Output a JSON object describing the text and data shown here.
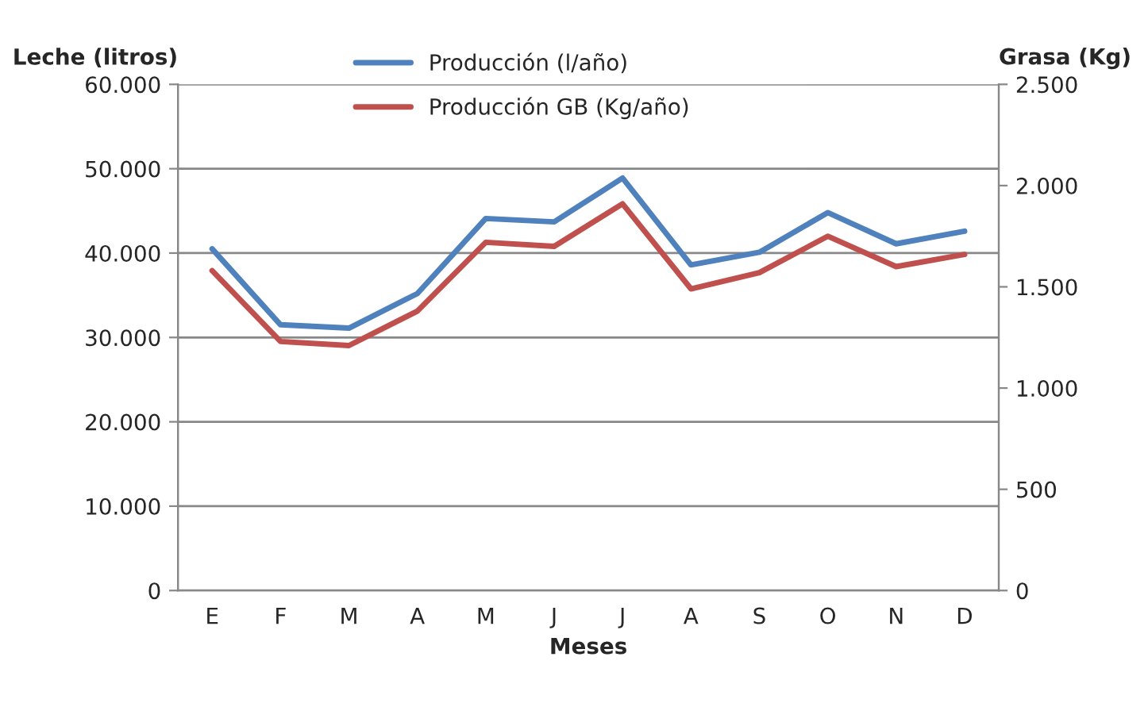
{
  "chart_data": {
    "type": "line",
    "xlabel": "Meses",
    "ylabel": "Leche (litros)",
    "y2label": "Grasa (Kg)",
    "categories": [
      "E",
      "F",
      "M",
      "A",
      "M",
      "J",
      "J",
      "A",
      "S",
      "O",
      "N",
      "D"
    ],
    "series": [
      {
        "name": "Producción (l/año)",
        "color": "#4f81bd",
        "values": [
          40500,
          31500,
          31100,
          35200,
          44100,
          43700,
          48900,
          38600,
          40100,
          44800,
          41100,
          42600
        ]
      },
      {
        "name": "Producción GB (Kg/año)",
        "color": "#c0504d",
        "axis": "y2",
        "values": [
          1580,
          1230,
          1210,
          1380,
          1720,
          1700,
          1910,
          1490,
          1570,
          1750,
          1600,
          1660
        ]
      }
    ],
    "ylim": [
      0,
      60000
    ],
    "yticks": [
      0,
      {
        "value": 10000,
        "label": "10.000"
      },
      {
        "value": 20000,
        "label": "20.000"
      },
      {
        "value": 30000,
        "label": "30.000"
      },
      {
        "value": 40000,
        "label": "40.000"
      },
      {
        "value": 50000,
        "label": "50.000"
      },
      {
        "value": 60000,
        "label": "60.000"
      }
    ],
    "y2lim": [
      0,
      2500
    ],
    "y2ticks": [
      0,
      500,
      {
        "value": 1000,
        "label": "1.000"
      },
      {
        "value": 1500,
        "label": "1.500"
      },
      {
        "value": 2000,
        "label": "2.000"
      },
      {
        "value": 2500,
        "label": "2.500"
      }
    ],
    "grid": "y",
    "legend": "top",
    "marker": "none",
    "line_style": "solid"
  }
}
